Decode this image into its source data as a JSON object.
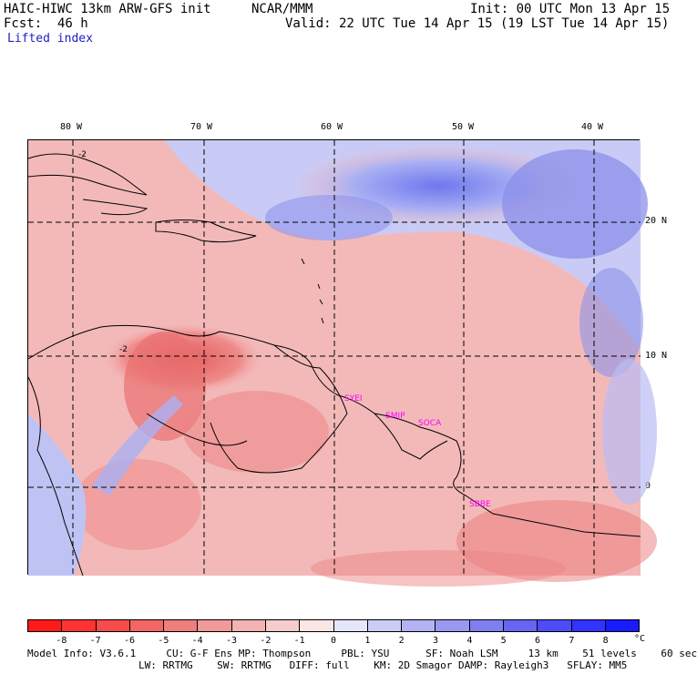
{
  "header": {
    "model": "HAIC-HIWC 13km ARW-GFS init",
    "org": "NCAR/MMM",
    "init": "Init: 00 UTC Mon 13 Apr 15",
    "fcst": "Fcst:  46 h",
    "valid": "Valid: 22 UTC Tue 14 Apr 15 (19 LST Tue 14 Apr 15)",
    "field": "Lifted index"
  },
  "axes": {
    "lon_labels": [
      "80 W",
      "70 W",
      "60 W",
      "50 W",
      "40 W"
    ],
    "lat_labels": [
      "20 N",
      "10 N",
      "0"
    ]
  },
  "stations": [
    "SYEI",
    "SMJP",
    "SOCA",
    "SBBE"
  ],
  "legend": {
    "ticks": [
      "-8",
      "-7",
      "-6",
      "-5",
      "-4",
      "-3",
      "-2",
      "-1",
      "0",
      "1",
      "2",
      "3",
      "4",
      "5",
      "6",
      "7",
      "8"
    ],
    "unit": "°C",
    "colors": [
      "#ff1a1a",
      "#ff3333",
      "#f84c4c",
      "#f26666",
      "#ef7f7f",
      "#f29999",
      "#f4b3b3",
      "#f7cccc",
      "#fbe6e6",
      "#e6e6fb",
      "#ccccf7",
      "#b3b3f4",
      "#9999f2",
      "#7f7fef",
      "#6666f2",
      "#4c4cf8",
      "#3333ff",
      "#1a1aff"
    ]
  },
  "footer": {
    "line1": "Model Info: V3.6.1     CU: G-F Ens MP: Thompson     PBL: YSU      SF: Noah LSM     13 km    51 levels    60 sec",
    "line2": "LW: RRTMG    SW: RRTMG   DIFF: full    KM: 2D Smagor DAMP: Rayleigh3   SFLAY: MM5"
  }
}
